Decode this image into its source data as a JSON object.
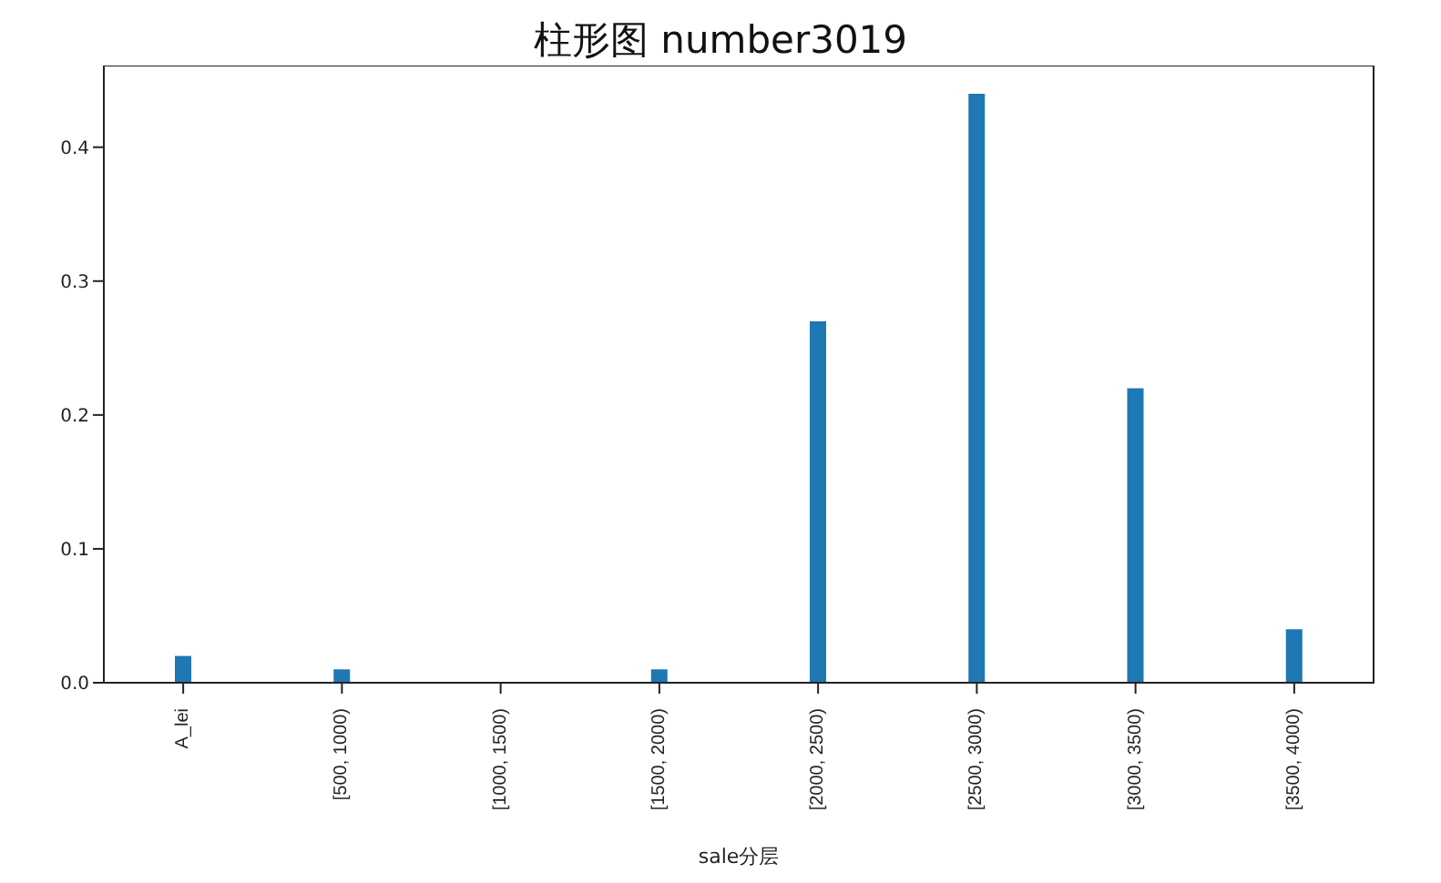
{
  "chart_data": {
    "type": "bar",
    "title": "柱形图 number3019",
    "xlabel": "sale分层",
    "categories": [
      "A_lei",
      "[500, 1000)",
      "[1000, 1500)",
      "[1500, 2000)",
      "[2000, 2500)",
      "[2500, 3000)",
      "[3000, 3500)",
      "[3500, 4000)"
    ],
    "values": [
      0.02,
      0.01,
      0,
      0.01,
      0.27,
      0.44,
      0.22,
      0.04
    ],
    "color": "#1f77b4",
    "ylim": [
      0,
      0.461
    ],
    "yticks": [
      {
        "value": 0,
        "label": "0.0"
      },
      {
        "value": 0.1,
        "label": "0.1"
      },
      {
        "value": 0.2,
        "label": "0.2"
      },
      {
        "value": 0.3,
        "label": "0.3"
      },
      {
        "value": 0.4,
        "label": "0.4"
      }
    ],
    "grid": false,
    "legend": false
  }
}
